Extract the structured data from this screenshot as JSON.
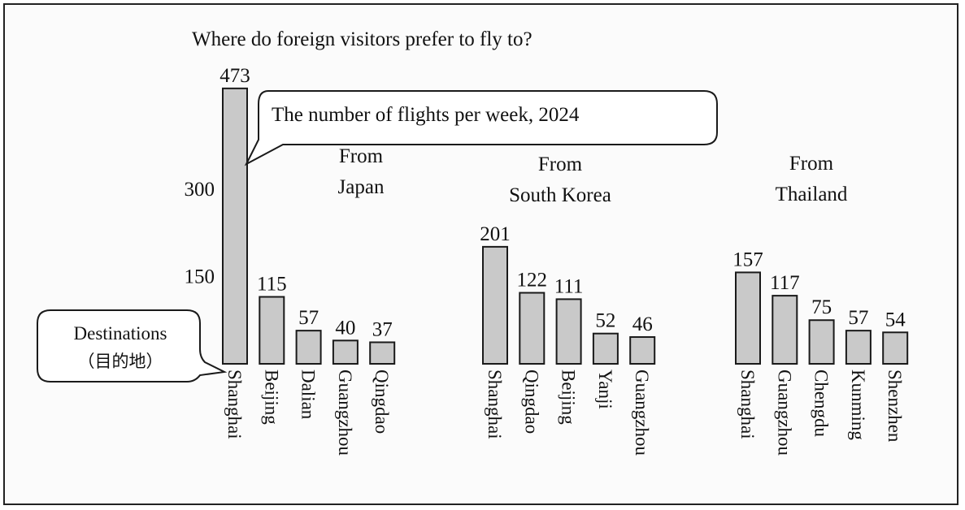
{
  "chart_data": {
    "type": "bar",
    "title": "Where do foreign visitors prefer to fly to?",
    "subtitle": "The number of flights per week, 2024",
    "axis_label": "Destinations",
    "axis_label_sub": "（目的地）",
    "y_ticks": [
      150,
      300
    ],
    "groups": [
      {
        "name_line1": "From",
        "name_line2": "Japan",
        "categories": [
          "Shanghai",
          "Beijing",
          "Dalian",
          "Guangzhou",
          "Qingdao"
        ],
        "values": [
          473,
          115,
          57,
          40,
          37
        ]
      },
      {
        "name_line1": "From",
        "name_line2": "South Korea",
        "categories": [
          "Shanghai",
          "Qingdao",
          "Beijing",
          "Yanji",
          "Guangzhou"
        ],
        "values": [
          201,
          122,
          111,
          52,
          46
        ]
      },
      {
        "name_line1": "From",
        "name_line2": "Thailand",
        "categories": [
          "Shanghai",
          "Guangzhou",
          "Chengdu",
          "Kunming",
          "Shenzhen"
        ],
        "values": [
          157,
          117,
          75,
          57,
          54
        ]
      }
    ]
  }
}
